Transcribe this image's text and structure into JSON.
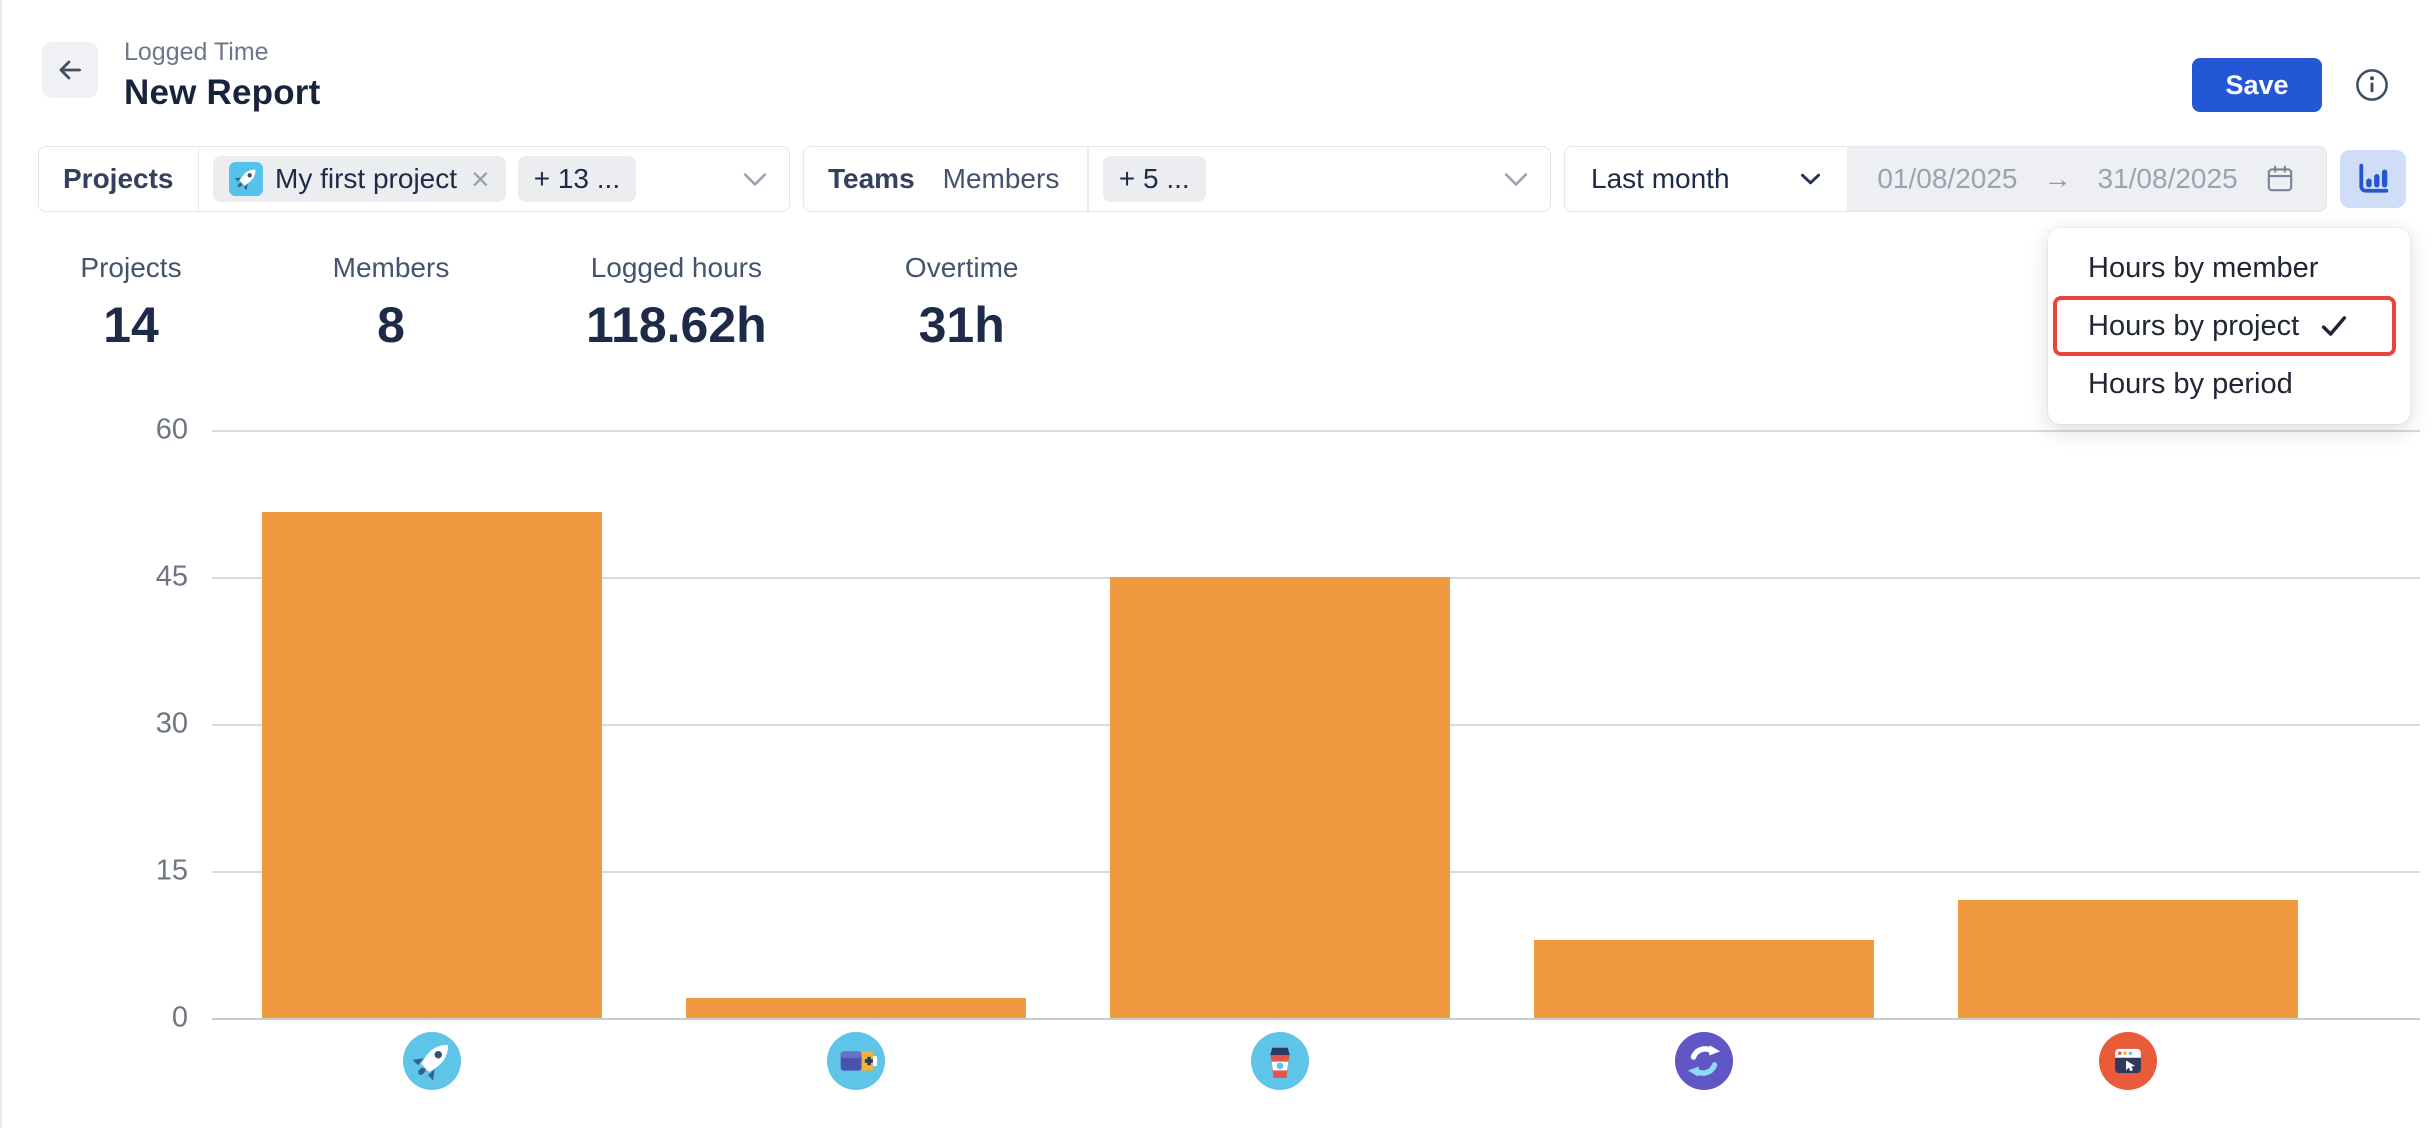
{
  "header": {
    "breadcrumb": "Logged Time",
    "title": "New Report",
    "save_label": "Save"
  },
  "filters": {
    "projects": {
      "label": "Projects",
      "selected_chip": "My first project",
      "remove_symbol": "×",
      "more_chip": "+ 13 ..."
    },
    "teams": {
      "label": "Teams",
      "mode": "Members",
      "more_chip": "+ 5 ..."
    },
    "period": {
      "preset": "Last month",
      "start_date": "01/08/2025",
      "arrow": "→",
      "end_date": "31/08/2025"
    }
  },
  "stats": {
    "items": [
      {
        "label": "Projects",
        "value": "14"
      },
      {
        "label": "Members",
        "value": "8"
      },
      {
        "label": "Logged hours",
        "value": "118.62h"
      },
      {
        "label": "Overtime",
        "value": "31h"
      }
    ]
  },
  "chart_type_menu": {
    "items": [
      {
        "label": "Hours by member",
        "checked": false,
        "highlighted": false
      },
      {
        "label": "Hours by project",
        "checked": true,
        "highlighted": true
      },
      {
        "label": "Hours by period",
        "checked": false,
        "highlighted": false
      }
    ]
  },
  "chart_data": {
    "type": "bar",
    "title": "",
    "xlabel": "",
    "ylabel": "",
    "categories": [
      "rocket-project",
      "battery-project",
      "coffee-project",
      "sync-project",
      "browser-project"
    ],
    "values": [
      51.62,
      2,
      45,
      8,
      12
    ],
    "yticks": [
      60,
      45,
      30,
      15,
      0
    ],
    "ylim": [
      0,
      60
    ],
    "bar_color": "#F09A40",
    "grid": true,
    "legend": false
  },
  "colors": {
    "accent_blue": "#2457D5",
    "bar_orange": "#F09A40",
    "annotation_red": "#E8463C",
    "chart_button_bg": "#CFDDF6",
    "icon_circle_blue": "#5EC4E8",
    "icon_circle_purple": "#6156C5",
    "icon_circle_orange": "#E85C3A"
  }
}
